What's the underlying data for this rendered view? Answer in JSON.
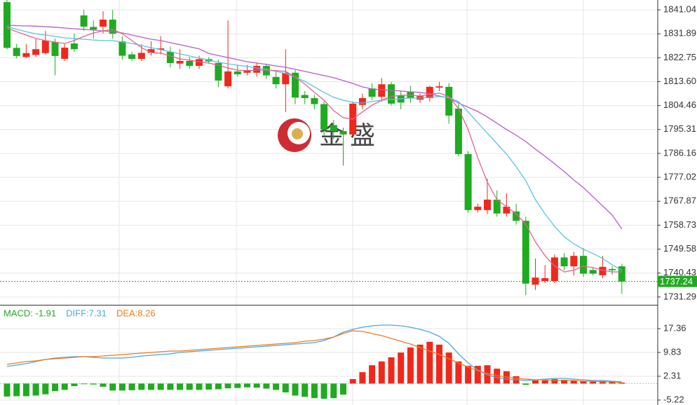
{
  "chart_data": [
    {
      "type": "candlestick",
      "open": [
        1844,
        1826.5,
        1823,
        1823.8,
        1824.5,
        1828.7,
        1822.3,
        1828.2,
        1838.9,
        1834.5,
        1834.6,
        1837.3,
        1829,
        1824,
        1822.3,
        1824.6,
        1825.8,
        1825,
        1820.5,
        1821.5,
        1819.6,
        1822.2,
        1820.7,
        1811.8,
        1817.5,
        1817,
        1817,
        1819.6,
        1815.4,
        1812.6,
        1817,
        1808.5,
        1807.3,
        1805,
        1797,
        1794.7,
        1793.4,
        1804.7,
        1811,
        1807.8,
        1812.6,
        1808.2,
        1809.8,
        1806.7,
        1807.3,
        1811.3,
        1811.6,
        1803.3,
        1785.9,
        1764.5,
        1764.5,
        1768.5,
        1763.2,
        1764,
        1760.4,
        1736,
        1737.4,
        1737.4,
        1746.4,
        1743,
        1747,
        1741.6,
        1739.6,
        1742,
        1743
      ],
      "high": [
        1845,
        1828,
        1828,
        1830,
        1833,
        1830,
        1828,
        1832,
        1841,
        1837,
        1840.5,
        1841,
        1831,
        1825,
        1828,
        1829,
        1831,
        1827,
        1826,
        1823,
        1823.5,
        1823,
        1822,
        1837,
        1820,
        1820,
        1821,
        1820.5,
        1818,
        1826,
        1818,
        1810,
        1808.5,
        1806,
        1799,
        1796,
        1806,
        1809,
        1813,
        1815,
        1813.5,
        1810,
        1812,
        1809,
        1812,
        1813.5,
        1813,
        1805,
        1787,
        1767,
        1776.5,
        1772,
        1771,
        1767,
        1762,
        1746,
        1743.5,
        1747.5,
        1748,
        1748.5,
        1750,
        1742.5,
        1747,
        1743,
        1744
      ],
      "low": [
        1826,
        1822.5,
        1822.6,
        1823,
        1824,
        1816,
        1821.5,
        1825,
        1833,
        1830,
        1832,
        1830,
        1822,
        1821.5,
        1821.5,
        1823.5,
        1824,
        1819,
        1818.5,
        1818.5,
        1818.5,
        1820.5,
        1811.5,
        1811,
        1815.5,
        1816,
        1815.5,
        1814.5,
        1811,
        1802,
        1805,
        1805,
        1803,
        1793,
        1791.5,
        1781.5,
        1793,
        1803,
        1806.5,
        1806,
        1804.5,
        1803,
        1805.5,
        1805.5,
        1806,
        1810,
        1797.5,
        1785,
        1763.5,
        1763.5,
        1763,
        1762,
        1762,
        1759,
        1732,
        1734,
        1736.6,
        1736.6,
        1741.5,
        1739.5,
        1739,
        1739.5,
        1738.5,
        1739.8,
        1732.5
      ],
      "close": [
        1826.5,
        1823.4,
        1824.5,
        1826,
        1829.3,
        1823.4,
        1826.6,
        1826,
        1834.6,
        1833.5,
        1837.3,
        1831.9,
        1823.5,
        1822.3,
        1824.6,
        1826,
        1826.3,
        1820.7,
        1821.5,
        1819.6,
        1822.2,
        1821.3,
        1814,
        1817.5,
        1816.4,
        1818,
        1819.6,
        1816,
        1812.6,
        1817,
        1807.5,
        1807.3,
        1805,
        1795.3,
        1794.7,
        1793.4,
        1805.2,
        1807.3,
        1807.8,
        1812.6,
        1805.2,
        1805.6,
        1807.3,
        1808,
        1811.6,
        1811.8,
        1800.6,
        1785.9,
        1764.5,
        1765.8,
        1768.5,
        1763.2,
        1765.8,
        1760.4,
        1736.4,
        1738.7,
        1738.5,
        1746.4,
        1743,
        1747,
        1740.2,
        1740.2,
        1742.8,
        1741.5,
        1737.2
      ],
      "up_color": "#f0281c",
      "down_color": "#1fab1f",
      "series": [
        {
          "color": "#b65ccb",
          "values": [
            1835.3,
            1835,
            1834.9,
            1834.8,
            1834.6,
            1834.4,
            1834.1,
            1833.8,
            1833.6,
            1833.3,
            1833,
            1832.7,
            1832.2,
            1831.4,
            1830.6,
            1829.8,
            1829.3,
            1828.5,
            1827.7,
            1826.9,
            1826.1,
            1824.4,
            1823.6,
            1822.8,
            1822,
            1821.2,
            1820.7,
            1820.2,
            1819.6,
            1819.1,
            1818.3,
            1817.5,
            1816.7,
            1815.9,
            1815.1,
            1814,
            1812.9,
            1811.6,
            1810.8,
            1810.5,
            1810.3,
            1810,
            1809.7,
            1809.5,
            1808.9,
            1808.1,
            1807.3,
            1805.4,
            1803.8,
            1802.2,
            1800.1,
            1797.7,
            1795.3,
            1793.1,
            1790.7,
            1787.8,
            1785.1,
            1782.2,
            1779.2,
            1776,
            1773.1,
            1769.6,
            1766.1,
            1762.6,
            1757.3
          ]
        },
        {
          "color": "#5cc3e0",
          "values": [
            1834.6,
            1833.6,
            1832.7,
            1831.9,
            1831.4,
            1830.9,
            1830.3,
            1830.1,
            1829.8,
            1829.5,
            1829.3,
            1829.3,
            1828.7,
            1828.2,
            1827.4,
            1826.6,
            1825.8,
            1825,
            1824.2,
            1823.4,
            1822.6,
            1821.8,
            1821,
            1820.4,
            1819.9,
            1819.4,
            1818.8,
            1818.3,
            1817.5,
            1816.7,
            1815.3,
            1813.7,
            1811.6,
            1809.5,
            1807.6,
            1806.5,
            1805.7,
            1805.4,
            1806,
            1806.5,
            1806.8,
            1807.1,
            1807.3,
            1807.3,
            1807.6,
            1807.9,
            1807.6,
            1806,
            1802,
            1797.9,
            1793.9,
            1789.9,
            1785.9,
            1781.1,
            1775.7,
            1768.5,
            1763.1,
            1758.3,
            1754.3,
            1751.6,
            1749.5,
            1747.9,
            1746,
            1743.6,
            1741.5
          ]
        },
        {
          "color": "#e2628f",
          "values": [
            1834.1,
            1832.7,
            1831.4,
            1830.1,
            1829.3,
            1828.7,
            1828.2,
            1829.3,
            1830.9,
            1832.2,
            1833,
            1833.6,
            1831.9,
            1829.3,
            1826.6,
            1824.7,
            1824.5,
            1823.4,
            1822.3,
            1821.8,
            1821.2,
            1820.7,
            1819.9,
            1818.8,
            1818,
            1817.8,
            1818,
            1818,
            1817.8,
            1817.5,
            1815.3,
            1812.7,
            1809.5,
            1806.5,
            1802.5,
            1799.8,
            1799.3,
            1802,
            1804.6,
            1806.5,
            1807.9,
            1808.4,
            1808.4,
            1808.1,
            1808.7,
            1809.2,
            1807.9,
            1803.3,
            1795.3,
            1784.6,
            1775.2,
            1768.5,
            1765.8,
            1763.1,
            1759.1,
            1752.4,
            1747.1,
            1743.1,
            1740.9,
            1741.5,
            1743.1,
            1742.5,
            1741.5,
            1740.9,
            1740.9
          ]
        }
      ],
      "last_price": 1737.24,
      "last_price_color": "#1fab1f",
      "ylim": [
        1728.3,
        1844.8
      ],
      "yticks": [
        1841.04,
        1831.89,
        1822.75,
        {
          "value": 1813.6,
          "label": "1813.60"
        },
        1804.46,
        1795.31,
        1786.16,
        1777.02,
        1767.87,
        1758.73,
        1749.58,
        1740.43,
        1731.29
      ],
      "watermark": "金盛"
    },
    {
      "type": "macd",
      "legend": [
        {
          "text": "MACD: -1.91",
          "color": "#1fab1f"
        },
        {
          "text": "DIFF:7.31",
          "color": "#4aa8e0"
        },
        {
          "text": "DEA:8.26",
          "color": "#f07a1a"
        }
      ],
      "values": [
        -4.1,
        -4,
        -4,
        -3.8,
        -3.4,
        -2.4,
        -2,
        -0.8,
        -0.2,
        -0.3,
        -1,
        -2.2,
        -2.2,
        -2.1,
        -2,
        -2,
        -2,
        -2,
        -2,
        -2,
        -2,
        -1.9,
        -1.8,
        -1.5,
        -1.4,
        -1.2,
        -1.3,
        -1.6,
        -2,
        -2.8,
        -3.8,
        -4.2,
        -4.6,
        -4.8,
        -4.6,
        -3.5,
        1.4,
        3.6,
        5.8,
        7,
        8.3,
        9.8,
        11.4,
        12.3,
        13.2,
        12.3,
        9.8,
        7,
        5.6,
        5.6,
        5.8,
        4.7,
        3.9,
        2.3,
        -0.4,
        1,
        1,
        1.4,
        1.2,
        1,
        0.8,
        0.6,
        0.8,
        0.6,
        0.3
      ],
      "up_color": "#f0281c",
      "down_color": "#1fab1f",
      "series": [
        {
          "name": "DIFF",
          "color": "#4aa8e0",
          "values": [
            5.4,
            5.85,
            6.29,
            6.95,
            7.62,
            8.06,
            8.28,
            8.5,
            8.5,
            8.28,
            8.06,
            8.06,
            8.06,
            8.28,
            8.73,
            8.95,
            9.17,
            9.39,
            9.84,
            10.06,
            10.28,
            10.5,
            10.72,
            10.94,
            11.16,
            11.38,
            11.6,
            11.83,
            12.05,
            12.27,
            12.49,
            12.71,
            12.93,
            13.6,
            14.71,
            16.26,
            17.14,
            17.81,
            18.25,
            18.47,
            18.47,
            18.25,
            17.81,
            17.14,
            16.26,
            14.93,
            12.71,
            9.39,
            6.51,
            4.3,
            2.75,
            1.86,
            1.42,
            1.2,
            0.97,
            1.2,
            1.42,
            1.64,
            1.64,
            1.42,
            1.2,
            0.97,
            0.97,
            0.75,
            0.53
          ]
        },
        {
          "name": "DEA",
          "color": "#f07a1a",
          "values": [
            6.07,
            6.51,
            6.95,
            7.18,
            7.62,
            7.84,
            8.06,
            8.28,
            8.5,
            8.5,
            8.73,
            8.95,
            9.17,
            9.39,
            9.61,
            9.84,
            10.06,
            10.28,
            10.28,
            10.5,
            10.72,
            10.94,
            11.16,
            11.38,
            11.6,
            11.83,
            12.05,
            12.27,
            12.49,
            12.71,
            12.93,
            13.38,
            13.6,
            14.04,
            14.71,
            15.82,
            16.7,
            16.48,
            15.82,
            15.15,
            14.26,
            13.38,
            12.49,
            11.38,
            10.28,
            9.17,
            7.84,
            6.51,
            5.18,
            4.08,
            3.19,
            2.53,
            2.08,
            1.64,
            1.42,
            1.2,
            1.2,
            0.97,
            0.97,
            0.97,
            0.75,
            0.75,
            0.53,
            0.53,
            0.31
          ]
        }
      ],
      "ylim": [
        -6.78,
        24.45
      ],
      "yticks": [
        17.36,
        9.83,
        2.31,
        -5.22
      ]
    }
  ]
}
